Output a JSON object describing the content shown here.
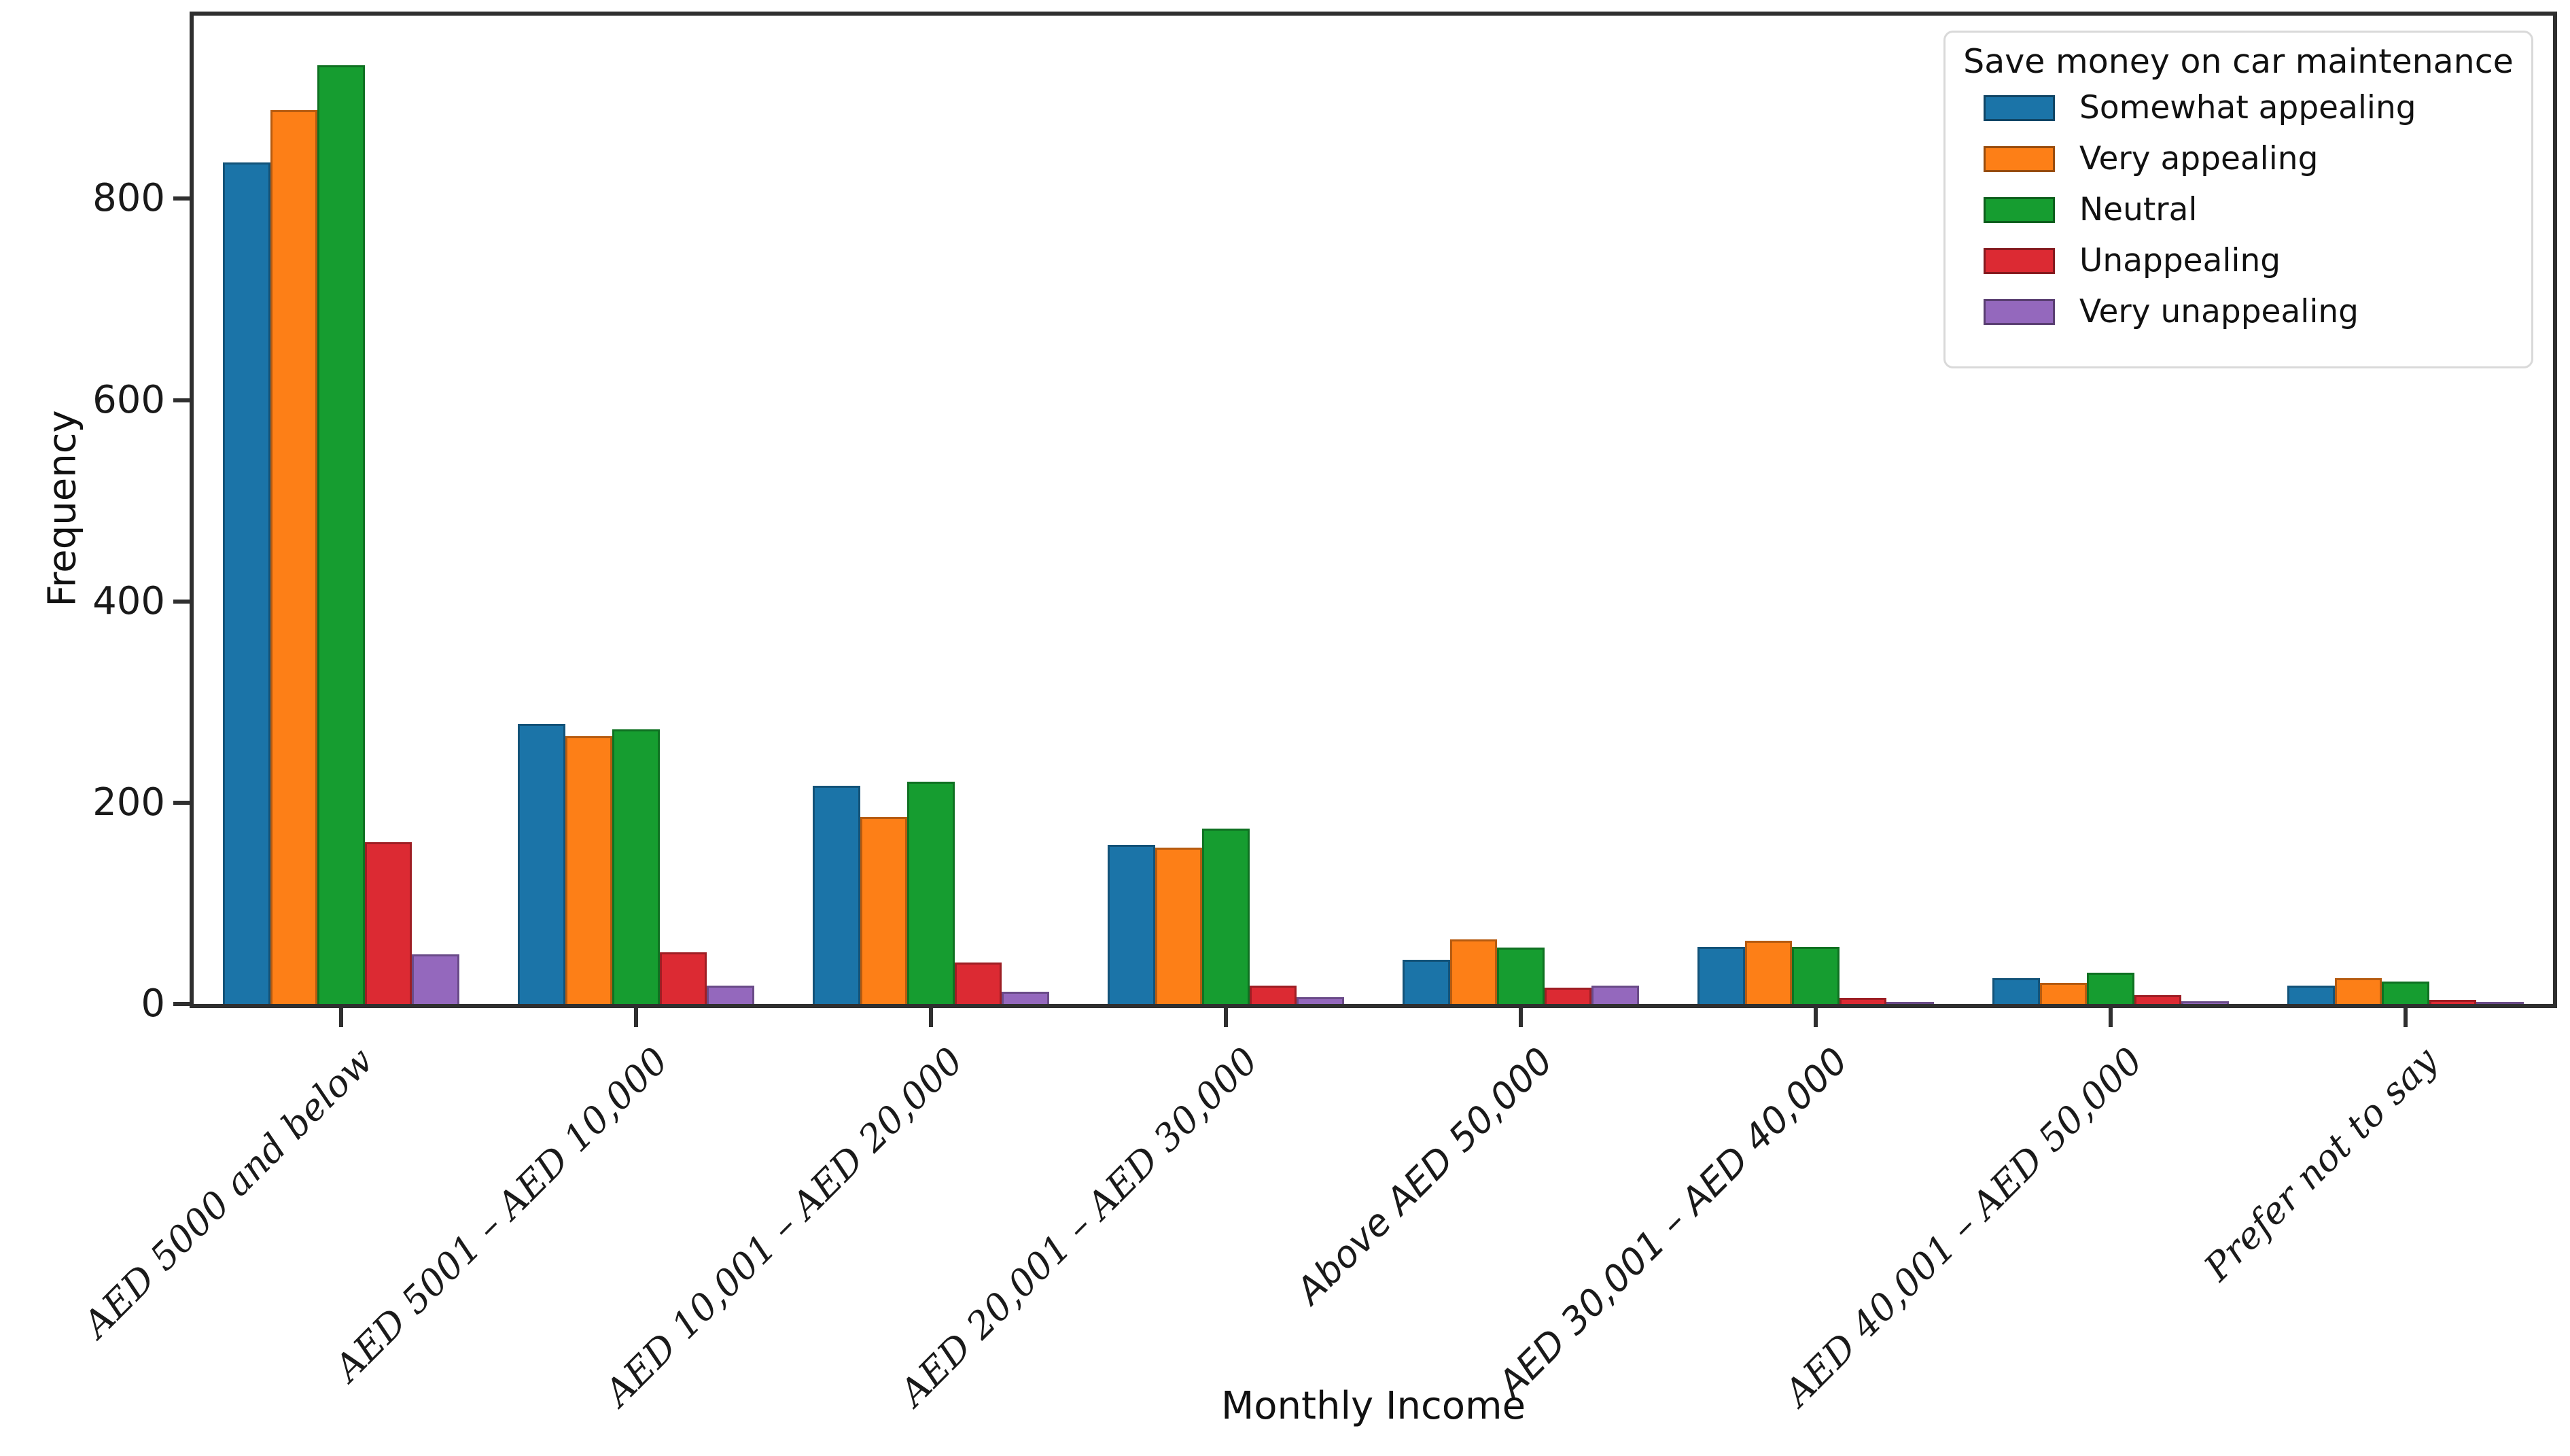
{
  "chart_data": {
    "type": "bar",
    "title": "",
    "xlabel": "Monthly Income",
    "ylabel": "Frequency",
    "ylim": [
      0,
      982
    ],
    "yticks": [
      0,
      200,
      400,
      600,
      800
    ],
    "grid": false,
    "legend_title": "Save money on car maintenance",
    "legend_position": "upper right",
    "categories": [
      "AED 5000 and below",
      "AED 5001 – AED 10,000",
      "AED 10,001 – AED 20,000",
      "AED 20,001 – AED 30,000",
      "Above AED 50,000",
      "AED 30,001 – AED 40,000",
      "AED 40,001 – AED 50,000",
      "Prefer not to say"
    ],
    "series": [
      {
        "name": "Somewhat appealing",
        "color": "#1b74a8",
        "values": [
          836,
          278,
          217,
          158,
          44,
          57,
          26,
          18
        ]
      },
      {
        "name": "Very appealing",
        "color": "#fd7f17",
        "values": [
          888,
          266,
          186,
          155,
          64,
          63,
          21,
          26
        ]
      },
      {
        "name": "Neutral",
        "color": "#169d30",
        "values": [
          933,
          273,
          221,
          174,
          56,
          57,
          31,
          22
        ]
      },
      {
        "name": "Unappealing",
        "color": "#dc2a33",
        "values": [
          161,
          51,
          41,
          18,
          16,
          6,
          9,
          4
        ]
      },
      {
        "name": "Very unappealing",
        "color": "#9468bd",
        "values": [
          49,
          18,
          12,
          7,
          18,
          2,
          3,
          2
        ]
      }
    ]
  }
}
